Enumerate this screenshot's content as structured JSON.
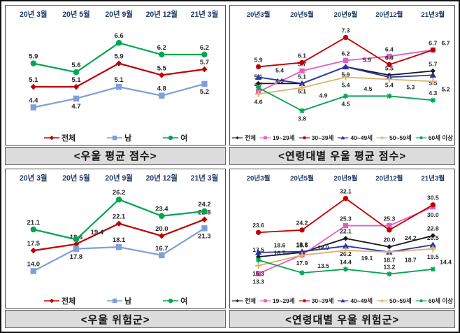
{
  "page": {
    "background": "#ffffff",
    "frame_border_color": "#111111",
    "panel_border_color": "#4d4d4d",
    "title_bar_bg": "#dcdcdc",
    "title_bar_border": "#666666",
    "axis_label_color": "#1f3864",
    "data_label_color": "#262626"
  },
  "chart_data": [
    {
      "id": "avg-score",
      "type": "line",
      "title": "<우울 평균 점수>",
      "categories": [
        "20년 3월",
        "20년 5월",
        "20년 9월",
        "20년 12월",
        "21년 3월"
      ],
      "ylim": [
        4.0,
        7.0
      ],
      "grid": false,
      "legend_position": "bottom",
      "series": [
        {
          "name": "전체",
          "color": "#c00000",
          "marker": "diamond",
          "label_side": "above",
          "values": [
            5.1,
            5.1,
            5.9,
            5.5,
            5.7
          ]
        },
        {
          "name": "남",
          "color": "#7f9fd9",
          "marker": "square",
          "label_side": [
            "above",
            "below",
            "above",
            "above",
            "below"
          ],
          "values": [
            4.4,
            4.7,
            5.1,
            4.8,
            5.2
          ]
        },
        {
          "name": "여",
          "color": "#00a651",
          "marker": "circle",
          "label_side": "above",
          "values": [
            5.9,
            5.6,
            6.6,
            6.2,
            6.2
          ]
        }
      ]
    },
    {
      "id": "avg-score-by-age",
      "type": "line",
      "title": "<연령대별 우울 평균 점수>",
      "categories": [
        "20년3월",
        "20년5월",
        "20년9월",
        "20년12월",
        "21년3월"
      ],
      "ylim": [
        3.4,
        7.6
      ],
      "grid": false,
      "legend_position": "bottom",
      "series": [
        {
          "name": "전체",
          "color": "#1a1a1a",
          "marker": "diamond",
          "label_side": [
            "above",
            "above",
            "below",
            "above",
            "above"
          ],
          "values": [
            5.1,
            5.1,
            5.9,
            5.5,
            5.7
          ]
        },
        {
          "name": "19~29세",
          "color": "#e060c0",
          "marker": "square",
          "label_side": "above",
          "values": [
            4.7,
            5.7,
            6.2,
            6.4,
            6.7
          ]
        },
        {
          "name": "30~39세",
          "color": "#c00000",
          "marker": "circle",
          "label_side": "above",
          "values": [
            5.9,
            6.1,
            7.3,
            6.0,
            6.7
          ]
        },
        {
          "name": "40~49세",
          "color": "#2a35a5",
          "marker": "triangle",
          "label_side": [
            "above",
            "below",
            "above",
            "below",
            "below"
          ],
          "values": [
            5.4,
            5.1,
            5.9,
            5.4,
            5.5
          ]
        },
        {
          "name": "50~59세",
          "color": "#ddb26b",
          "marker": "plus",
          "label_side": "below",
          "values": [
            4.6,
            4.9,
            5.4,
            5.3,
            5.2
          ]
        },
        {
          "name": "60세 이상",
          "color": "#00a651",
          "marker": "asterisk",
          "label_side": [
            "above",
            "below",
            "below",
            "above",
            "above"
          ],
          "values": [
            4.9,
            3.8,
            4.5,
            4.5,
            4.3
          ]
        }
      ]
    },
    {
      "id": "risk-group",
      "type": "line",
      "title": "<우울 위험군>",
      "categories": [
        "20년 3월",
        "20년 5월",
        "20년 9월",
        "20년 12월",
        "21년 3월"
      ],
      "ylim": [
        12,
        27
      ],
      "grid": false,
      "legend_position": "bottom",
      "series": [
        {
          "name": "전체",
          "color": "#c00000",
          "marker": "diamond",
          "label_side": "above",
          "values": [
            17.5,
            18.6,
            22.1,
            20.0,
            22.8
          ]
        },
        {
          "name": "남",
          "color": "#7f9fd9",
          "marker": "square",
          "label_side": [
            "above",
            "below",
            "above",
            "above",
            "below"
          ],
          "values": [
            14.0,
            17.8,
            18.1,
            16.7,
            21.3
          ]
        },
        {
          "name": "여",
          "color": "#00a651",
          "marker": "circle",
          "label_side": "above",
          "values": [
            21.1,
            19.4,
            26.2,
            23.4,
            24.2
          ]
        }
      ]
    },
    {
      "id": "risk-group-by-age",
      "type": "line",
      "title": "<연령대별 우울 위험군>",
      "categories": [
        "20년3월",
        "20년5월",
        "20년9월",
        "20년12월",
        "21년3월"
      ],
      "ylim": [
        11,
        33
      ],
      "grid": false,
      "legend_position": "bottom",
      "series": [
        {
          "name": "전체",
          "color": "#1a1a1a",
          "marker": "diamond",
          "label_side": "above",
          "values": [
            17.5,
            18.6,
            22.1,
            20.0,
            22.8
          ]
        },
        {
          "name": "19~29세",
          "color": "#e060c0",
          "marker": "square",
          "label_side": [
            "below",
            "above",
            "above",
            "above",
            "below"
          ],
          "values": [
            13.3,
            18.0,
            25.3,
            25.3,
            30.0
          ]
        },
        {
          "name": "30~39세",
          "color": "#c00000",
          "marker": "circle",
          "label_side": [
            "above",
            "above",
            "above",
            "below",
            "above"
          ],
          "values": [
            23.6,
            24.2,
            32.1,
            24.2,
            30.5
          ]
        },
        {
          "name": "40~49세",
          "color": "#2a35a5",
          "marker": "triangle",
          "label_side": [
            "above",
            "above",
            "below",
            "below",
            "above"
          ],
          "values": [
            18.6,
            18.8,
            20.2,
            18.7,
            20.5
          ]
        },
        {
          "name": "50~59세",
          "color": "#ddb26b",
          "marker": "plus",
          "label_side": "below",
          "values": [
            15.3,
            17.9,
            19.1,
            18.7,
            19.5
          ]
        },
        {
          "name": "60세 이상",
          "color": "#00a651",
          "marker": "asterisk",
          "label_side": "above",
          "values": [
            16.7,
            13.5,
            14.4,
            13.2,
            14.4
          ]
        }
      ]
    }
  ]
}
